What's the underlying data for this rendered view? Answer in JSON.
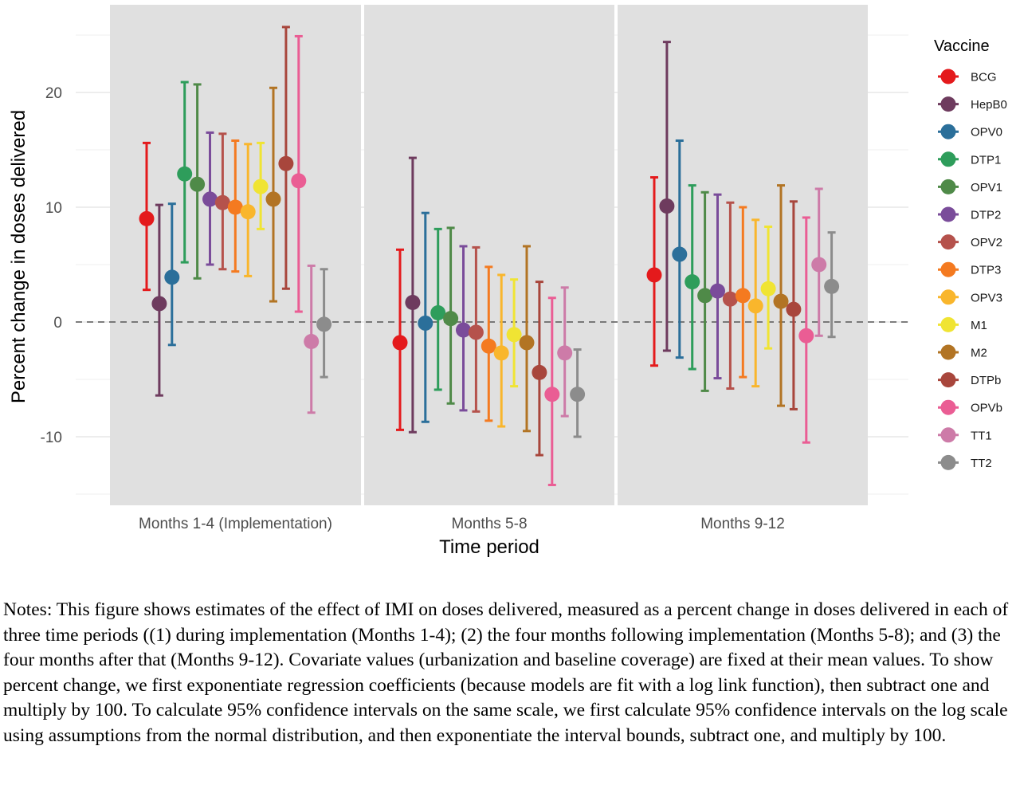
{
  "chart_data": {
    "type": "scatter",
    "subtype": "point-estimates-with-95pct-error-bars, faceted by time period",
    "xlabel": "Time period",
    "ylabel": "Percent change in doses delivered",
    "ylim": [
      -16.5,
      27.5
    ],
    "yticks": [
      -10,
      0,
      10,
      20
    ],
    "reference_line": {
      "y": 0,
      "style": "dashed"
    },
    "grid": true,
    "legend": {
      "title": "Vaccine",
      "position": "right"
    },
    "facets": [
      "Months 1-4 (Implementation)",
      "Months 5-8",
      "Months 9-12"
    ],
    "series": [
      {
        "name": "BCG",
        "color": "#E41A1C",
        "estimate": [
          9.0,
          -1.8,
          4.1
        ],
        "lower": [
          2.8,
          -9.4,
          -3.8
        ],
        "upper": [
          15.6,
          6.3,
          12.6
        ]
      },
      {
        "name": "HepB0",
        "color": "#6E3B5E",
        "estimate": [
          1.6,
          1.7,
          10.1
        ],
        "lower": [
          -6.4,
          -9.6,
          -2.5
        ],
        "upper": [
          10.2,
          14.3,
          24.4
        ]
      },
      {
        "name": "OPV0",
        "color": "#2B6F9A",
        "estimate": [
          3.9,
          -0.1,
          5.9
        ],
        "lower": [
          -2.0,
          -8.7,
          -3.1
        ],
        "upper": [
          10.3,
          9.5,
          15.8
        ]
      },
      {
        "name": "DTP1",
        "color": "#2E9D5B",
        "estimate": [
          12.9,
          0.8,
          3.5
        ],
        "lower": [
          5.2,
          -5.9,
          -4.1
        ],
        "upper": [
          20.9,
          8.1,
          11.9
        ]
      },
      {
        "name": "OPV1",
        "color": "#4F8A48",
        "estimate": [
          12.0,
          0.3,
          2.3
        ],
        "lower": [
          3.8,
          -7.1,
          -6.0
        ],
        "upper": [
          20.7,
          8.2,
          11.3
        ]
      },
      {
        "name": "DTP2",
        "color": "#7A4C9A",
        "estimate": [
          10.7,
          -0.7,
          2.7
        ],
        "lower": [
          5.0,
          -7.7,
          -4.9
        ],
        "upper": [
          16.5,
          6.6,
          11.1
        ]
      },
      {
        "name": "OPV2",
        "color": "#B5524C",
        "estimate": [
          10.4,
          -0.9,
          2.0
        ],
        "lower": [
          4.6,
          -7.8,
          -5.8
        ],
        "upper": [
          16.4,
          6.5,
          10.4
        ]
      },
      {
        "name": "DTP3",
        "color": "#F47A20",
        "estimate": [
          10.0,
          -2.1,
          2.3
        ],
        "lower": [
          4.4,
          -8.6,
          -4.8
        ],
        "upper": [
          15.8,
          4.8,
          10.0
        ]
      },
      {
        "name": "OPV3",
        "color": "#F9B62C",
        "estimate": [
          9.6,
          -2.7,
          1.4
        ],
        "lower": [
          4.0,
          -9.1,
          -5.6
        ],
        "upper": [
          15.5,
          4.1,
          8.9
        ]
      },
      {
        "name": "M1",
        "color": "#F0E433",
        "estimate": [
          11.8,
          -1.1,
          2.9
        ],
        "lower": [
          8.1,
          -5.6,
          -2.3
        ],
        "upper": [
          15.6,
          3.7,
          8.3
        ]
      },
      {
        "name": "M2",
        "color": "#B27424",
        "estimate": [
          10.7,
          -1.8,
          1.8
        ],
        "lower": [
          1.8,
          -9.5,
          -7.3
        ],
        "upper": [
          20.4,
          6.6,
          11.9
        ]
      },
      {
        "name": "DTPb",
        "color": "#A8463C",
        "estimate": [
          13.8,
          -4.4,
          1.1
        ],
        "lower": [
          2.9,
          -11.6,
          -7.6
        ],
        "upper": [
          25.7,
          3.5,
          10.5
        ]
      },
      {
        "name": "OPVb",
        "color": "#EA5D94",
        "estimate": [
          12.3,
          -6.3,
          -1.2
        ],
        "lower": [
          0.9,
          -14.2,
          -10.5
        ],
        "upper": [
          24.9,
          2.1,
          9.1
        ]
      },
      {
        "name": "TT1",
        "color": "#CD7BA8",
        "estimate": [
          -1.7,
          -2.7,
          5.0
        ],
        "lower": [
          -7.9,
          -8.2,
          -1.2
        ],
        "upper": [
          4.9,
          3.0,
          11.6
        ]
      },
      {
        "name": "TT2",
        "color": "#8C8C8C",
        "estimate": [
          -0.2,
          -6.3,
          3.1
        ],
        "lower": [
          -4.8,
          -10.0,
          -1.3
        ],
        "upper": [
          4.6,
          -2.4,
          7.8
        ]
      }
    ]
  },
  "notes": "Notes: This figure shows estimates of the effect of IMI on doses delivered, measured as a percent change in doses delivered in each of three time periods ((1) during implementation (Months 1-4); (2) the four months following implementation (Months 5-8); and (3) the four months after that (Months 9-12). Covariate values (urbanization and baseline coverage) are fixed at their mean values. To show percent change, we first exponentiate regression coefficients (because models are fit with a log link function), then subtract one and multiply by 100. To calculate 95% confidence intervals on the same scale, we first calculate 95% confidence intervals on the log scale using assumptions from the normal distribution, and then exponentiate the interval bounds, subtract one, and multiply by 100."
}
